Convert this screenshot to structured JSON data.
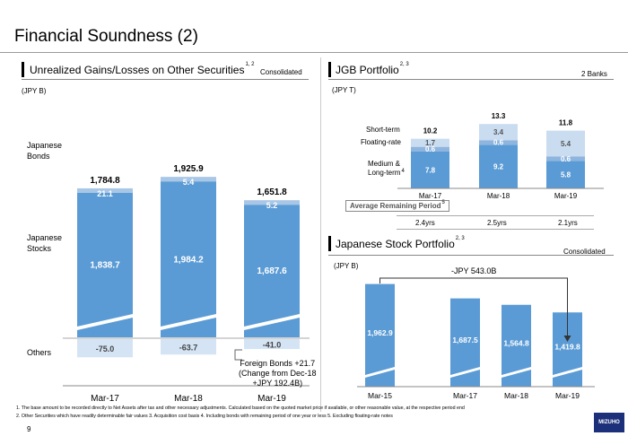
{
  "page": {
    "title": "Financial Soundness (2)",
    "page_number": "9",
    "logo_text": "MIZUHO",
    "footnote_1": "1. The base amount to be recorded directly to Net Assets after tax and other necessary adjustments. Calculated based on the quoted market price if available, or other reasonable value, at the respective period end",
    "footnote_2": "2. Other Securities which have readily determinable fair values 3. Acquisition cost basis 4. Including bonds with remaining period of one year or less 5. Excluding floating-rate notes"
  },
  "colors": {
    "stocks": "#5b9bd5",
    "bonds": "#a8c6e5",
    "others": "#d4e4f4",
    "jgb_short": "#c9dcf0",
    "jgb_float": "#8fb5df",
    "jgb_medium": "#5b9bd5",
    "stock_bar": "#5b9bd5"
  },
  "left_panel": {
    "title": "Unrealized Gains/Losses on Other Securities",
    "title_sup": "1, 2",
    "badge": "Consolidated",
    "unit": "(JPY B)",
    "row_labels": {
      "bonds": "Japanese\nBonds",
      "stocks": "Japanese\nStocks",
      "others": "Others"
    },
    "annotation": [
      "Foreign Bonds +21.7",
      "(Change from Dec-18",
      "+JPY 192.4B)"
    ]
  },
  "jgb_panel": {
    "title": "JGB Portfolio",
    "title_sup": "2, 3",
    "badge": "2 Banks",
    "unit": "(JPY T)",
    "row_labels": {
      "short": "Short-term",
      "float": "Floating-rate",
      "medium": "Medium &\nLong-term",
      "medium_sup": "4"
    },
    "remaining_label": "Average Remaining Period",
    "remaining_sup": "5",
    "remaining_values": [
      "2.4yrs",
      "2.5yrs",
      "2.1yrs"
    ]
  },
  "stock_panel": {
    "title": "Japanese Stock Portfolio",
    "title_sup": "2, 3",
    "badge": "Consolidated",
    "unit": "(JPY B)",
    "change_label": "-JPY 543.0B"
  },
  "chart_data": [
    {
      "type": "bar",
      "title": "Unrealized Gains/Losses on Other Securities",
      "categories": [
        "Mar-17",
        "Mar-18",
        "Mar-19"
      ],
      "totals": [
        "1,784.8",
        "1,925.9",
        "1,651.8"
      ],
      "series": [
        {
          "name": "Japanese Stocks",
          "values": [
            1838.7,
            1984.2,
            1687.6
          ],
          "labels": [
            "1,838.7",
            "1,984.2",
            "1,687.6"
          ]
        },
        {
          "name": "Japanese Bonds",
          "values": [
            21.1,
            5.4,
            5.2
          ],
          "labels": [
            "21.1",
            "5.4",
            "5.2"
          ]
        },
        {
          "name": "Others",
          "values": [
            -75.0,
            -63.7,
            -41.0
          ],
          "labels": [
            "-75.0",
            "-63.7",
            "-41.0"
          ]
        }
      ]
    },
    {
      "type": "bar",
      "title": "JGB Portfolio",
      "categories": [
        "Mar-17",
        "Mar-18",
        "Mar-19"
      ],
      "totals": [
        "10.2",
        "13.3",
        "11.8"
      ],
      "series": [
        {
          "name": "Medium & Long-term",
          "values": [
            7.8,
            9.2,
            5.8
          ],
          "labels": [
            "7.8",
            "9.2",
            "5.8"
          ]
        },
        {
          "name": "Floating-rate",
          "values": [
            0.6,
            0.6,
            0.6
          ],
          "labels": [
            "0.6",
            "0.6",
            "0.6"
          ]
        },
        {
          "name": "Short-term",
          "values": [
            1.7,
            3.4,
            5.4
          ],
          "labels": [
            "1.7",
            "3.4",
            "5.4"
          ]
        }
      ]
    },
    {
      "type": "bar",
      "title": "Japanese Stock Portfolio",
      "categories": [
        "Mar-15",
        "Mar-17",
        "Mar-18",
        "Mar-19"
      ],
      "values": [
        1962.9,
        1687.5,
        1564.8,
        1419.8
      ],
      "labels": [
        "1,962.9",
        "1,687.5",
        "1,564.8",
        "1,419.8"
      ]
    }
  ]
}
